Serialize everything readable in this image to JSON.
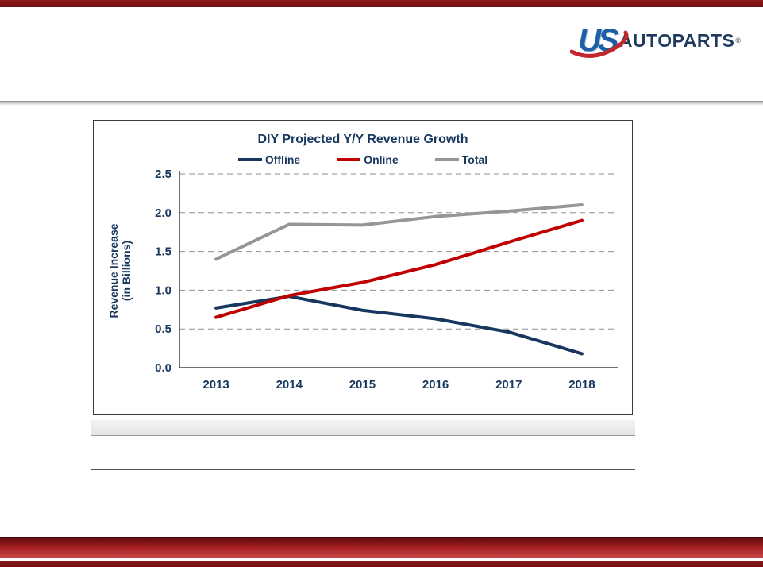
{
  "logo": {
    "us": "US",
    "autoparts": "AUTOPARTS",
    "trademark": "®"
  },
  "colors": {
    "accent_red": "#a31d20",
    "navy": "#17375e",
    "series_offline": "#17375e",
    "series_online": "#c00000",
    "series_total": "#969696",
    "gridline": "#909090"
  },
  "chart_data": {
    "type": "line",
    "title": "DIY Projected Y/Y Revenue Growth",
    "ylabel_lines": [
      "Revenue Increase",
      "(in Billions)"
    ],
    "categories": [
      "2013",
      "2014",
      "2015",
      "2016",
      "2017",
      "2018"
    ],
    "series": [
      {
        "name": "Offline",
        "color": "#17375e",
        "values": [
          0.77,
          0.92,
          0.74,
          0.63,
          0.46,
          0.18
        ]
      },
      {
        "name": "Online",
        "color": "#c00000",
        "values": [
          0.65,
          0.93,
          1.1,
          1.33,
          1.62,
          1.9
        ]
      },
      {
        "name": "Total",
        "color": "#969696",
        "values": [
          1.4,
          1.85,
          1.84,
          1.95,
          2.02,
          2.1
        ]
      }
    ],
    "ylim": [
      0,
      2.5
    ],
    "ytick_step": 0.5,
    "grid": true,
    "legend_position": "top"
  }
}
